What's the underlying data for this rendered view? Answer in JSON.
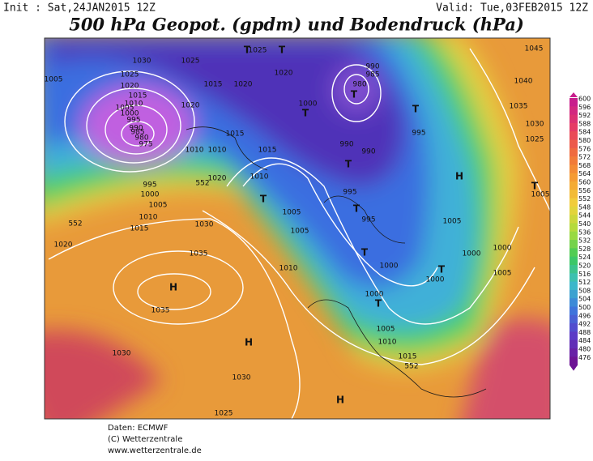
{
  "header": {
    "init": "Init : Sat,24JAN2015 12Z",
    "valid": "Valid: Tue,03FEB2015 12Z",
    "title": "500 hPa Geopot. (gpdm) und Bodendruck (hPa)"
  },
  "colorbar": {
    "levels": [
      600,
      596,
      592,
      588,
      584,
      580,
      576,
      572,
      568,
      564,
      560,
      556,
      552,
      548,
      544,
      540,
      536,
      532,
      528,
      524,
      520,
      516,
      512,
      508,
      504,
      500,
      496,
      492,
      488,
      484,
      480,
      476
    ]
  },
  "map": {
    "labels": [
      "1030",
      "1025",
      "1025",
      "1025",
      "1020",
      "1015",
      "1010",
      "1005",
      "1000",
      "995",
      "990",
      "985",
      "980",
      "975",
      "1015",
      "1020",
      "1020",
      "1020",
      "1015",
      "1010",
      "1015",
      "1020",
      "1010",
      "995",
      "1000",
      "1005",
      "1010",
      "1015",
      "1020",
      "1030",
      "1035",
      "1035",
      "1030",
      "1030",
      "1025",
      "990",
      "985",
      "980",
      "1000",
      "995",
      "990",
      "990",
      "995",
      "995",
      "1005",
      "1005",
      "1010",
      "1000",
      "1000",
      "1005",
      "1010",
      "1015",
      "1005",
      "1000",
      "1000",
      "1000",
      "1005",
      "1005",
      "1030",
      "1025",
      "1035",
      "1040",
      "1045",
      "1010",
      "1005",
      "552",
      "552",
      "552",
      "H",
      "H",
      "H",
      "H",
      "T",
      "T",
      "T",
      "T",
      "T",
      "T",
      "T",
      "T",
      "T",
      "T",
      "T",
      "T"
    ]
  },
  "footer": {
    "lines": [
      "Daten: ECMWF",
      "(C) Wetterzentrale",
      "www.wetterzentrale.de"
    ]
  }
}
